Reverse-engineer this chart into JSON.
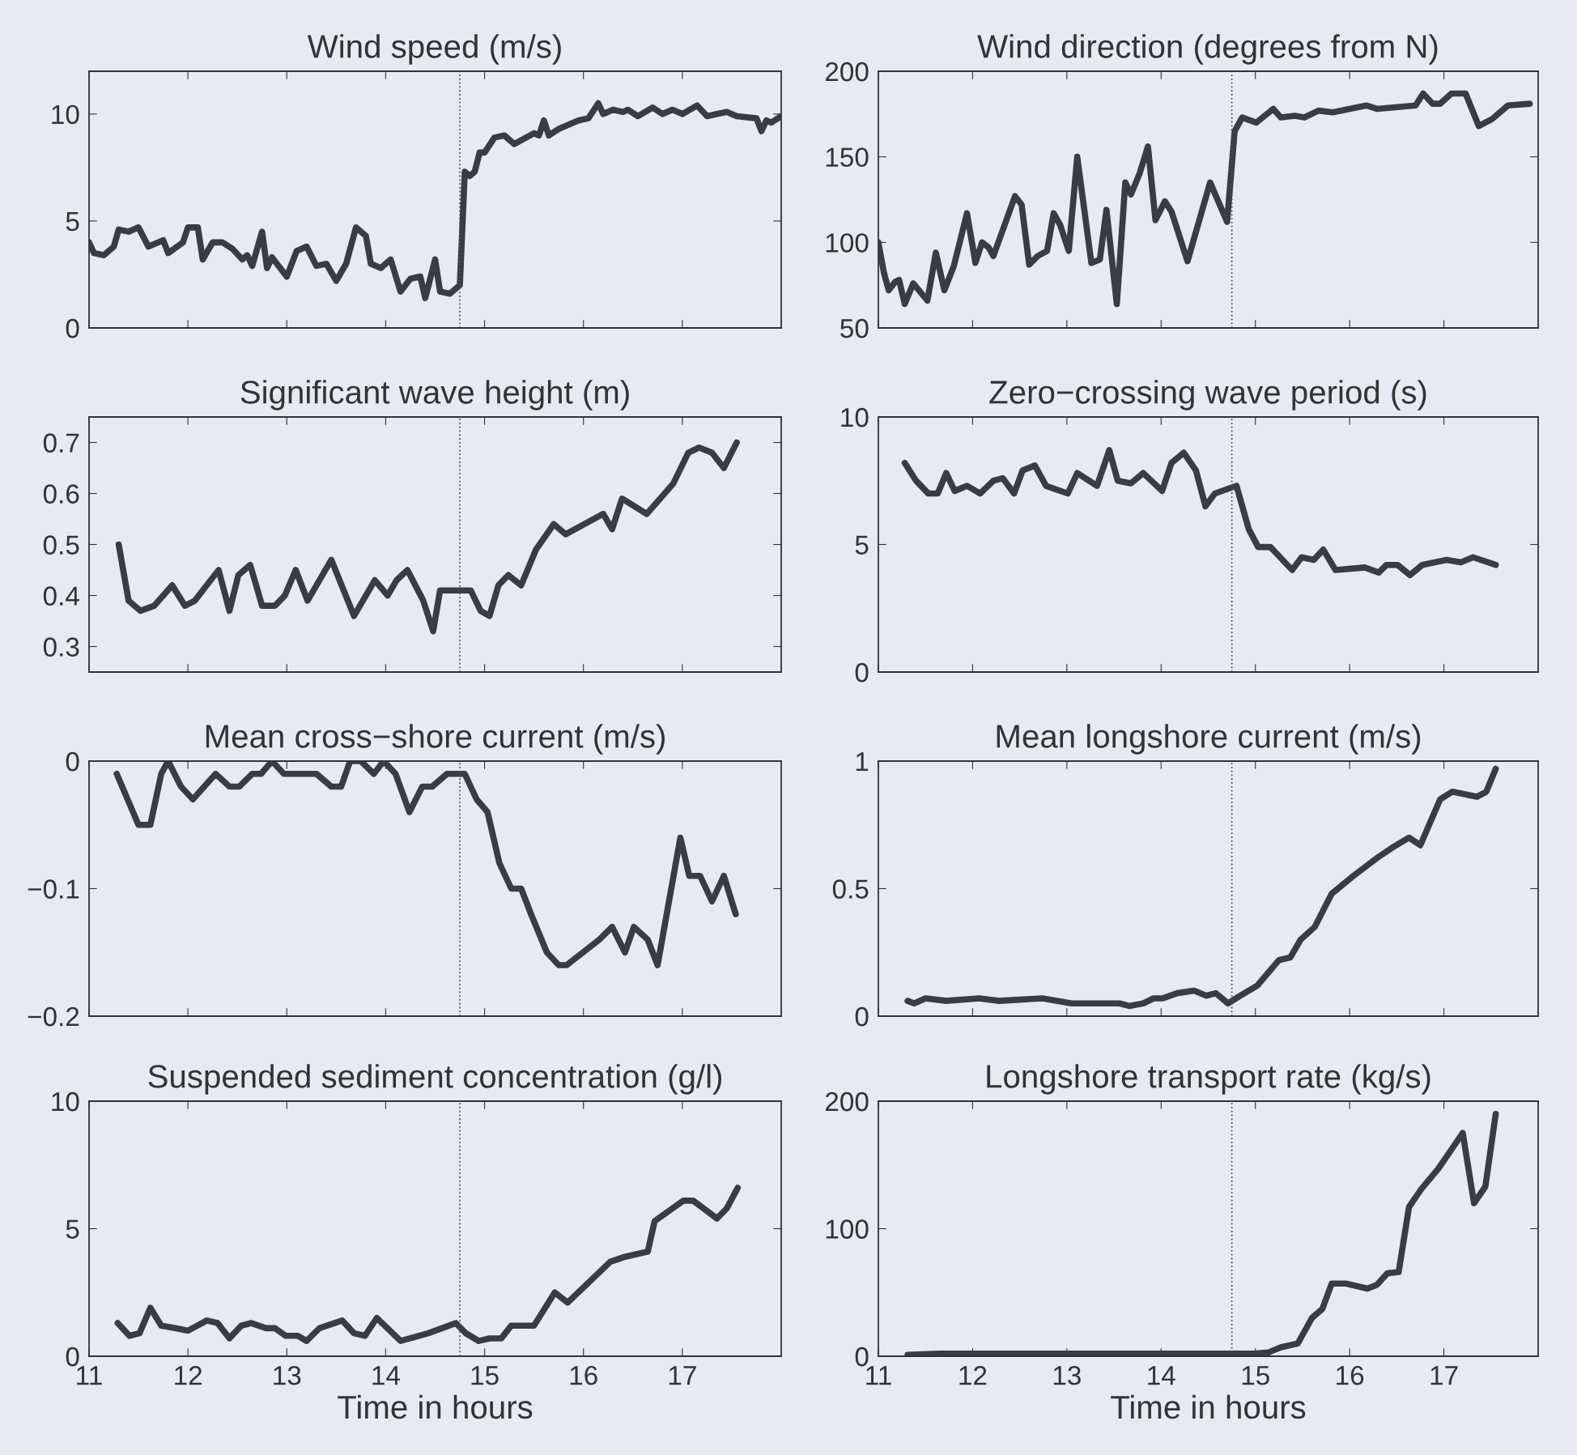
{
  "chart_data": [
    {
      "type": "line",
      "title": "Wind speed (m/s)",
      "color": "#3a3b45",
      "xlim": [
        11,
        18
      ],
      "xticks": [
        11,
        12,
        13,
        14,
        15,
        16,
        17
      ],
      "ylim": [
        0,
        12
      ],
      "yticks": [
        0,
        5,
        10
      ],
      "tick_labels": "y",
      "ref_lines": [
        {
          "axis": "x",
          "value": 14.75,
          "line_style": "dotted"
        }
      ],
      "x": [
        11.0,
        11.05,
        11.15,
        11.25,
        11.3,
        11.4,
        11.5,
        11.6,
        11.75,
        11.8,
        11.95,
        12.0,
        12.1,
        12.15,
        12.25,
        12.35,
        12.45,
        12.55,
        12.6,
        12.65,
        12.75,
        12.8,
        12.85,
        12.9,
        13.0,
        13.1,
        13.2,
        13.3,
        13.4,
        13.5,
        13.6,
        13.7,
        13.8,
        13.85,
        13.95,
        14.05,
        14.15,
        14.25,
        14.35,
        14.4,
        14.5,
        14.55,
        14.65,
        14.75,
        14.8,
        14.85,
        14.9,
        14.95,
        15.0,
        15.1,
        15.2,
        15.3,
        15.5,
        15.55,
        15.6,
        15.65,
        15.75,
        15.85,
        15.95,
        16.05,
        16.15,
        16.2,
        16.3,
        16.4,
        16.45,
        16.55,
        16.7,
        16.8,
        16.9,
        17.0,
        17.15,
        17.25,
        17.35,
        17.45,
        17.55,
        17.75,
        17.8,
        17.85,
        17.9,
        18.0
      ],
      "values": [
        4.0,
        3.5,
        3.4,
        3.8,
        4.6,
        4.5,
        4.7,
        3.8,
        4.1,
        3.5,
        4.0,
        4.7,
        4.7,
        3.2,
        4.0,
        4.0,
        3.7,
        3.2,
        3.4,
        2.9,
        4.5,
        2.8,
        3.3,
        3.0,
        2.4,
        3.6,
        3.8,
        2.9,
        3.0,
        2.2,
        3.0,
        4.7,
        4.3,
        3.0,
        2.8,
        3.2,
        1.7,
        2.3,
        2.4,
        1.4,
        3.2,
        1.7,
        1.6,
        2.0,
        7.3,
        7.1,
        7.3,
        8.2,
        8.2,
        8.9,
        9.0,
        8.6,
        9.1,
        9.0,
        9.7,
        9.0,
        9.3,
        9.5,
        9.7,
        9.8,
        10.5,
        10.0,
        10.2,
        10.1,
        10.2,
        9.9,
        10.3,
        10.0,
        10.2,
        10.0,
        10.4,
        9.9,
        10.0,
        10.1,
        9.9,
        9.8,
        9.2,
        9.7,
        9.6,
        9.9
      ]
    },
    {
      "type": "line",
      "title": "Wind direction (degrees from N)",
      "color": "#3a3b45",
      "xlim": [
        11,
        18
      ],
      "xticks": [
        11,
        12,
        13,
        14,
        15,
        16,
        17
      ],
      "ylim": [
        50,
        200
      ],
      "yticks": [
        50,
        100,
        150,
        200
      ],
      "tick_labels": "y",
      "ref_lines": [
        {
          "axis": "x",
          "value": 14.75,
          "line_style": "dotted"
        }
      ],
      "x": [
        11.0,
        11.06,
        11.11,
        11.18,
        11.22,
        11.28,
        11.37,
        11.43,
        11.52,
        11.61,
        11.7,
        11.8,
        11.94,
        12.03,
        12.1,
        12.17,
        12.22,
        12.45,
        12.52,
        12.6,
        12.69,
        12.79,
        12.86,
        12.93,
        13.02,
        13.11,
        13.26,
        13.35,
        13.42,
        13.53,
        13.62,
        13.68,
        13.77,
        13.86,
        13.94,
        14.04,
        14.11,
        14.28,
        14.52,
        14.7,
        14.78,
        14.86,
        15.01,
        15.19,
        15.27,
        15.42,
        15.52,
        15.67,
        15.82,
        16.18,
        16.29,
        16.7,
        16.78,
        16.88,
        16.96,
        17.08,
        17.23,
        17.37,
        17.51,
        17.68,
        17.91
      ],
      "values": [
        100,
        82,
        72,
        77,
        78,
        64,
        76,
        72,
        66,
        94,
        72,
        86,
        117,
        88,
        100,
        97,
        92,
        127,
        122,
        87,
        92,
        95,
        117,
        110,
        95,
        150,
        88,
        90,
        119,
        64,
        135,
        128,
        140,
        156,
        113,
        124,
        118,
        89,
        135,
        112,
        165,
        173,
        170,
        178,
        173,
        174,
        173,
        177,
        176,
        180,
        178,
        180,
        187,
        181,
        181,
        187,
        187,
        168,
        172,
        180,
        181
      ]
    },
    {
      "type": "line",
      "title": "Significant wave height (m)",
      "color": "#3a3b45",
      "xlim": [
        11,
        18
      ],
      "xticks": [
        11,
        12,
        13,
        14,
        15,
        16,
        17
      ],
      "ylim": [
        0.25,
        0.75
      ],
      "yticks": [
        0.3,
        0.4,
        0.5,
        0.6,
        0.7
      ],
      "tick_labels": "y",
      "ref_lines": [
        {
          "axis": "x",
          "value": 14.75,
          "line_style": "dotted"
        }
      ],
      "x": [
        11.3,
        11.4,
        11.52,
        11.66,
        11.84,
        11.97,
        12.07,
        12.31,
        12.42,
        12.51,
        12.63,
        12.75,
        12.88,
        12.98,
        13.09,
        13.21,
        13.45,
        13.68,
        13.89,
        14.02,
        14.11,
        14.22,
        14.38,
        14.48,
        14.55,
        14.76,
        14.86,
        14.96,
        15.05,
        15.14,
        15.24,
        15.37,
        15.52,
        15.7,
        15.82,
        16.2,
        16.29,
        16.39,
        16.64,
        16.91,
        17.06,
        17.17,
        17.3,
        17.42,
        17.55
      ],
      "values": [
        0.5,
        0.39,
        0.37,
        0.38,
        0.42,
        0.38,
        0.39,
        0.45,
        0.37,
        0.44,
        0.46,
        0.38,
        0.38,
        0.4,
        0.45,
        0.39,
        0.47,
        0.36,
        0.43,
        0.4,
        0.43,
        0.45,
        0.39,
        0.33,
        0.41,
        0.41,
        0.41,
        0.37,
        0.36,
        0.42,
        0.44,
        0.42,
        0.49,
        0.54,
        0.52,
        0.56,
        0.53,
        0.59,
        0.56,
        0.62,
        0.68,
        0.69,
        0.68,
        0.65,
        0.7
      ]
    },
    {
      "type": "line",
      "title": "Zero−crossing wave period (s)",
      "color": "#3a3b45",
      "xlim": [
        11,
        18
      ],
      "xticks": [
        11,
        12,
        13,
        14,
        15,
        16,
        17
      ],
      "ylim": [
        0,
        10
      ],
      "yticks": [
        0,
        5,
        10
      ],
      "tick_labels": "y",
      "ref_lines": [
        {
          "axis": "x",
          "value": 14.75,
          "line_style": "dotted"
        }
      ],
      "x": [
        11.28,
        11.4,
        11.53,
        11.63,
        11.72,
        11.81,
        11.94,
        12.08,
        12.22,
        12.32,
        12.44,
        12.53,
        12.66,
        12.78,
        13.01,
        13.11,
        13.32,
        13.45,
        13.54,
        13.68,
        13.81,
        14.01,
        14.11,
        14.24,
        14.37,
        14.47,
        14.57,
        14.8,
        14.93,
        15.03,
        15.16,
        15.39,
        15.49,
        15.62,
        15.72,
        15.85,
        16.16,
        16.31,
        16.39,
        16.51,
        16.64,
        16.77,
        17.03,
        17.18,
        17.31,
        17.55
      ],
      "values": [
        8.2,
        7.5,
        7.0,
        7.0,
        7.8,
        7.1,
        7.3,
        7.0,
        7.5,
        7.6,
        7.0,
        7.9,
        8.1,
        7.3,
        7.0,
        7.8,
        7.3,
        8.7,
        7.5,
        7.4,
        7.8,
        7.1,
        8.2,
        8.6,
        7.9,
        6.5,
        7.0,
        7.3,
        5.6,
        4.9,
        4.9,
        4.0,
        4.5,
        4.4,
        4.8,
        4.0,
        4.1,
        3.9,
        4.2,
        4.2,
        3.8,
        4.2,
        4.4,
        4.3,
        4.5,
        4.2
      ]
    },
    {
      "type": "line",
      "title": "Mean cross−shore current (m/s)",
      "color": "#3a3b45",
      "xlim": [
        11,
        18
      ],
      "xticks": [
        11,
        12,
        13,
        14,
        15,
        16,
        17
      ],
      "ylim": [
        -0.2,
        0
      ],
      "yticks": [
        {
          "value": -0.2,
          "label": "−0.2"
        },
        {
          "value": -0.1,
          "label": "−0.1"
        },
        0
      ],
      "tick_labels": "y",
      "ref_lines": [
        {
          "axis": "x",
          "value": 14.75,
          "line_style": "dotted"
        }
      ],
      "x": [
        11.28,
        11.5,
        11.62,
        11.73,
        11.8,
        11.93,
        12.05,
        12.28,
        12.42,
        12.52,
        12.65,
        12.74,
        12.85,
        12.97,
        13.3,
        13.45,
        13.55,
        13.64,
        13.75,
        13.88,
        13.98,
        14.1,
        14.24,
        14.37,
        14.47,
        14.62,
        14.8,
        14.92,
        15.03,
        15.15,
        15.27,
        15.37,
        15.47,
        15.63,
        15.75,
        15.83,
        16.16,
        16.29,
        16.42,
        16.51,
        16.65,
        16.75,
        16.98,
        17.07,
        17.18,
        17.3,
        17.42,
        17.54
      ],
      "values": [
        -0.01,
        -0.05,
        -0.05,
        -0.01,
        0,
        -0.02,
        -0.03,
        -0.01,
        -0.02,
        -0.02,
        -0.01,
        -0.01,
        0,
        -0.01,
        -0.01,
        -0.02,
        -0.02,
        0,
        0,
        -0.01,
        0,
        -0.01,
        -0.04,
        -0.02,
        -0.02,
        -0.01,
        -0.01,
        -0.03,
        -0.04,
        -0.08,
        -0.1,
        -0.1,
        -0.12,
        -0.15,
        -0.16,
        -0.16,
        -0.14,
        -0.13,
        -0.15,
        -0.13,
        -0.14,
        -0.16,
        -0.06,
        -0.09,
        -0.09,
        -0.11,
        -0.09,
        -0.12
      ]
    },
    {
      "type": "line",
      "title": "Mean longshore current (m/s)",
      "color": "#3a3b45",
      "xlim": [
        11,
        18
      ],
      "xticks": [
        11,
        12,
        13,
        14,
        15,
        16,
        17
      ],
      "ylim": [
        0,
        1
      ],
      "yticks": [
        0,
        0.5,
        1
      ],
      "tick_labels": "y",
      "ref_lines": [
        {
          "axis": "x",
          "value": 14.75,
          "line_style": "dotted"
        }
      ],
      "x": [
        11.31,
        11.38,
        11.5,
        11.72,
        12.07,
        12.28,
        12.74,
        13.05,
        13.56,
        13.66,
        13.81,
        13.92,
        14.02,
        14.17,
        14.35,
        14.48,
        14.58,
        14.71,
        14.84,
        15.02,
        15.25,
        15.37,
        15.48,
        15.63,
        15.81,
        16.04,
        16.29,
        16.45,
        16.63,
        16.75,
        16.96,
        17.09,
        17.35,
        17.45,
        17.55
      ],
      "values": [
        0.06,
        0.05,
        0.07,
        0.06,
        0.07,
        0.06,
        0.07,
        0.05,
        0.05,
        0.04,
        0.05,
        0.07,
        0.07,
        0.09,
        0.1,
        0.08,
        0.09,
        0.05,
        0.08,
        0.12,
        0.22,
        0.23,
        0.3,
        0.35,
        0.48,
        0.55,
        0.62,
        0.66,
        0.7,
        0.67,
        0.85,
        0.88,
        0.86,
        0.88,
        0.97
      ]
    },
    {
      "type": "line",
      "title": "Suspended sediment concentration (g/l)",
      "xlabel": "Time in hours",
      "color": "#3a3b45",
      "xlim": [
        11,
        18
      ],
      "xticks": [
        11,
        12,
        13,
        14,
        15,
        16,
        17
      ],
      "ylim": [
        0,
        10
      ],
      "yticks": [
        0,
        5,
        10
      ],
      "ref_lines": [
        {
          "axis": "x",
          "value": 14.75,
          "line_style": "dotted"
        }
      ],
      "x": [
        11.29,
        11.41,
        11.51,
        11.62,
        11.73,
        11.87,
        12.0,
        12.19,
        12.3,
        12.42,
        12.54,
        12.64,
        12.79,
        12.88,
        12.99,
        13.11,
        13.2,
        13.33,
        13.56,
        13.68,
        13.79,
        13.91,
        14.15,
        14.43,
        14.71,
        14.81,
        14.94,
        15.05,
        15.17,
        15.27,
        15.5,
        15.71,
        15.84,
        16.27,
        16.42,
        16.65,
        16.72,
        17.01,
        17.11,
        17.35,
        17.45,
        17.56
      ],
      "values": [
        1.3,
        0.8,
        0.9,
        1.9,
        1.2,
        1.1,
        1.0,
        1.4,
        1.3,
        0.7,
        1.2,
        1.3,
        1.1,
        1.1,
        0.8,
        0.8,
        0.6,
        1.1,
        1.4,
        0.9,
        0.8,
        1.5,
        0.6,
        0.9,
        1.3,
        0.9,
        0.6,
        0.7,
        0.7,
        1.2,
        1.2,
        2.5,
        2.1,
        3.7,
        3.9,
        4.1,
        5.3,
        6.1,
        6.1,
        5.4,
        5.8,
        6.6
      ]
    },
    {
      "type": "line",
      "title": "Longshore transport rate (kg/s)",
      "xlabel": "Time in hours",
      "color": "#3a3b45",
      "xlim": [
        11,
        18
      ],
      "xticks": [
        11,
        12,
        13,
        14,
        15,
        16,
        17
      ],
      "ylim": [
        0,
        200
      ],
      "yticks": [
        0,
        100,
        200
      ],
      "ref_lines": [
        {
          "axis": "x",
          "value": 14.75,
          "line_style": "dotted"
        }
      ],
      "x": [
        11.31,
        11.66,
        12.43,
        13.97,
        14.99,
        15.14,
        15.27,
        15.45,
        15.6,
        15.71,
        15.81,
        15.96,
        16.19,
        16.29,
        16.4,
        16.52,
        16.63,
        16.76,
        16.94,
        17.2,
        17.32,
        17.44,
        17.55
      ],
      "values": [
        1,
        2,
        2,
        2,
        2,
        3,
        7,
        10,
        30,
        37,
        57,
        57,
        53,
        56,
        65,
        66,
        117,
        131,
        147,
        175,
        120,
        133,
        190
      ]
    }
  ]
}
